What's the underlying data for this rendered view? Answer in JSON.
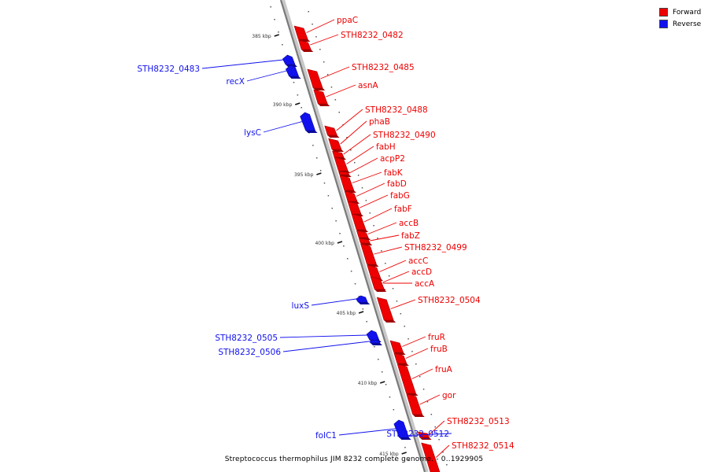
{
  "legend": {
    "forward_label": "Forward",
    "reverse_label": "Reverse",
    "forward_color": "#ee0000",
    "reverse_color": "#1111ee"
  },
  "caption": "Streptococcus thermophilus JIM 8232 complete genome. - 0..1929905",
  "colors": {
    "forward": "#ee0000",
    "reverse": "#1111ee",
    "axis": "#888888"
  },
  "ticks": [
    "385 kbp",
    "390 kbp",
    "395 kbp",
    "400 kbp",
    "405 kbp",
    "410 kbp",
    "415 kbp"
  ],
  "genes": [
    {
      "name": "ppaC",
      "strand": "forward"
    },
    {
      "name": "STH8232_0482",
      "strand": "forward"
    },
    {
      "name": "STH8232_0483",
      "strand": "reverse"
    },
    {
      "name": "recX",
      "strand": "reverse"
    },
    {
      "name": "STH8232_0485",
      "strand": "forward"
    },
    {
      "name": "asnA",
      "strand": "forward"
    },
    {
      "name": "lysC",
      "strand": "reverse"
    },
    {
      "name": "STH8232_0488",
      "strand": "forward"
    },
    {
      "name": "phaB",
      "strand": "forward"
    },
    {
      "name": "STH8232_0490",
      "strand": "forward"
    },
    {
      "name": "fabH",
      "strand": "forward"
    },
    {
      "name": "acpP2",
      "strand": "forward"
    },
    {
      "name": "fabK",
      "strand": "forward"
    },
    {
      "name": "fabD",
      "strand": "forward"
    },
    {
      "name": "fabG",
      "strand": "forward"
    },
    {
      "name": "fabF",
      "strand": "forward"
    },
    {
      "name": "accB",
      "strand": "forward"
    },
    {
      "name": "fabZ",
      "strand": "forward"
    },
    {
      "name": "STH8232_0499",
      "strand": "forward"
    },
    {
      "name": "accC",
      "strand": "forward"
    },
    {
      "name": "accD",
      "strand": "forward"
    },
    {
      "name": "accA",
      "strand": "forward"
    },
    {
      "name": "luxS",
      "strand": "reverse"
    },
    {
      "name": "STH8232_0504",
      "strand": "forward"
    },
    {
      "name": "STH8232_0505",
      "strand": "reverse"
    },
    {
      "name": "STH8232_0506",
      "strand": "reverse"
    },
    {
      "name": "fruR",
      "strand": "forward"
    },
    {
      "name": "fruB",
      "strand": "forward"
    },
    {
      "name": "fruA",
      "strand": "forward"
    },
    {
      "name": "gor",
      "strand": "forward"
    },
    {
      "name": "STH8232_0513",
      "strand": "forward"
    },
    {
      "name": "STH8232_0512",
      "strand": "reverse"
    },
    {
      "name": "STH8232_0514",
      "strand": "forward"
    },
    {
      "name": "folC1",
      "strand": "reverse"
    }
  ]
}
